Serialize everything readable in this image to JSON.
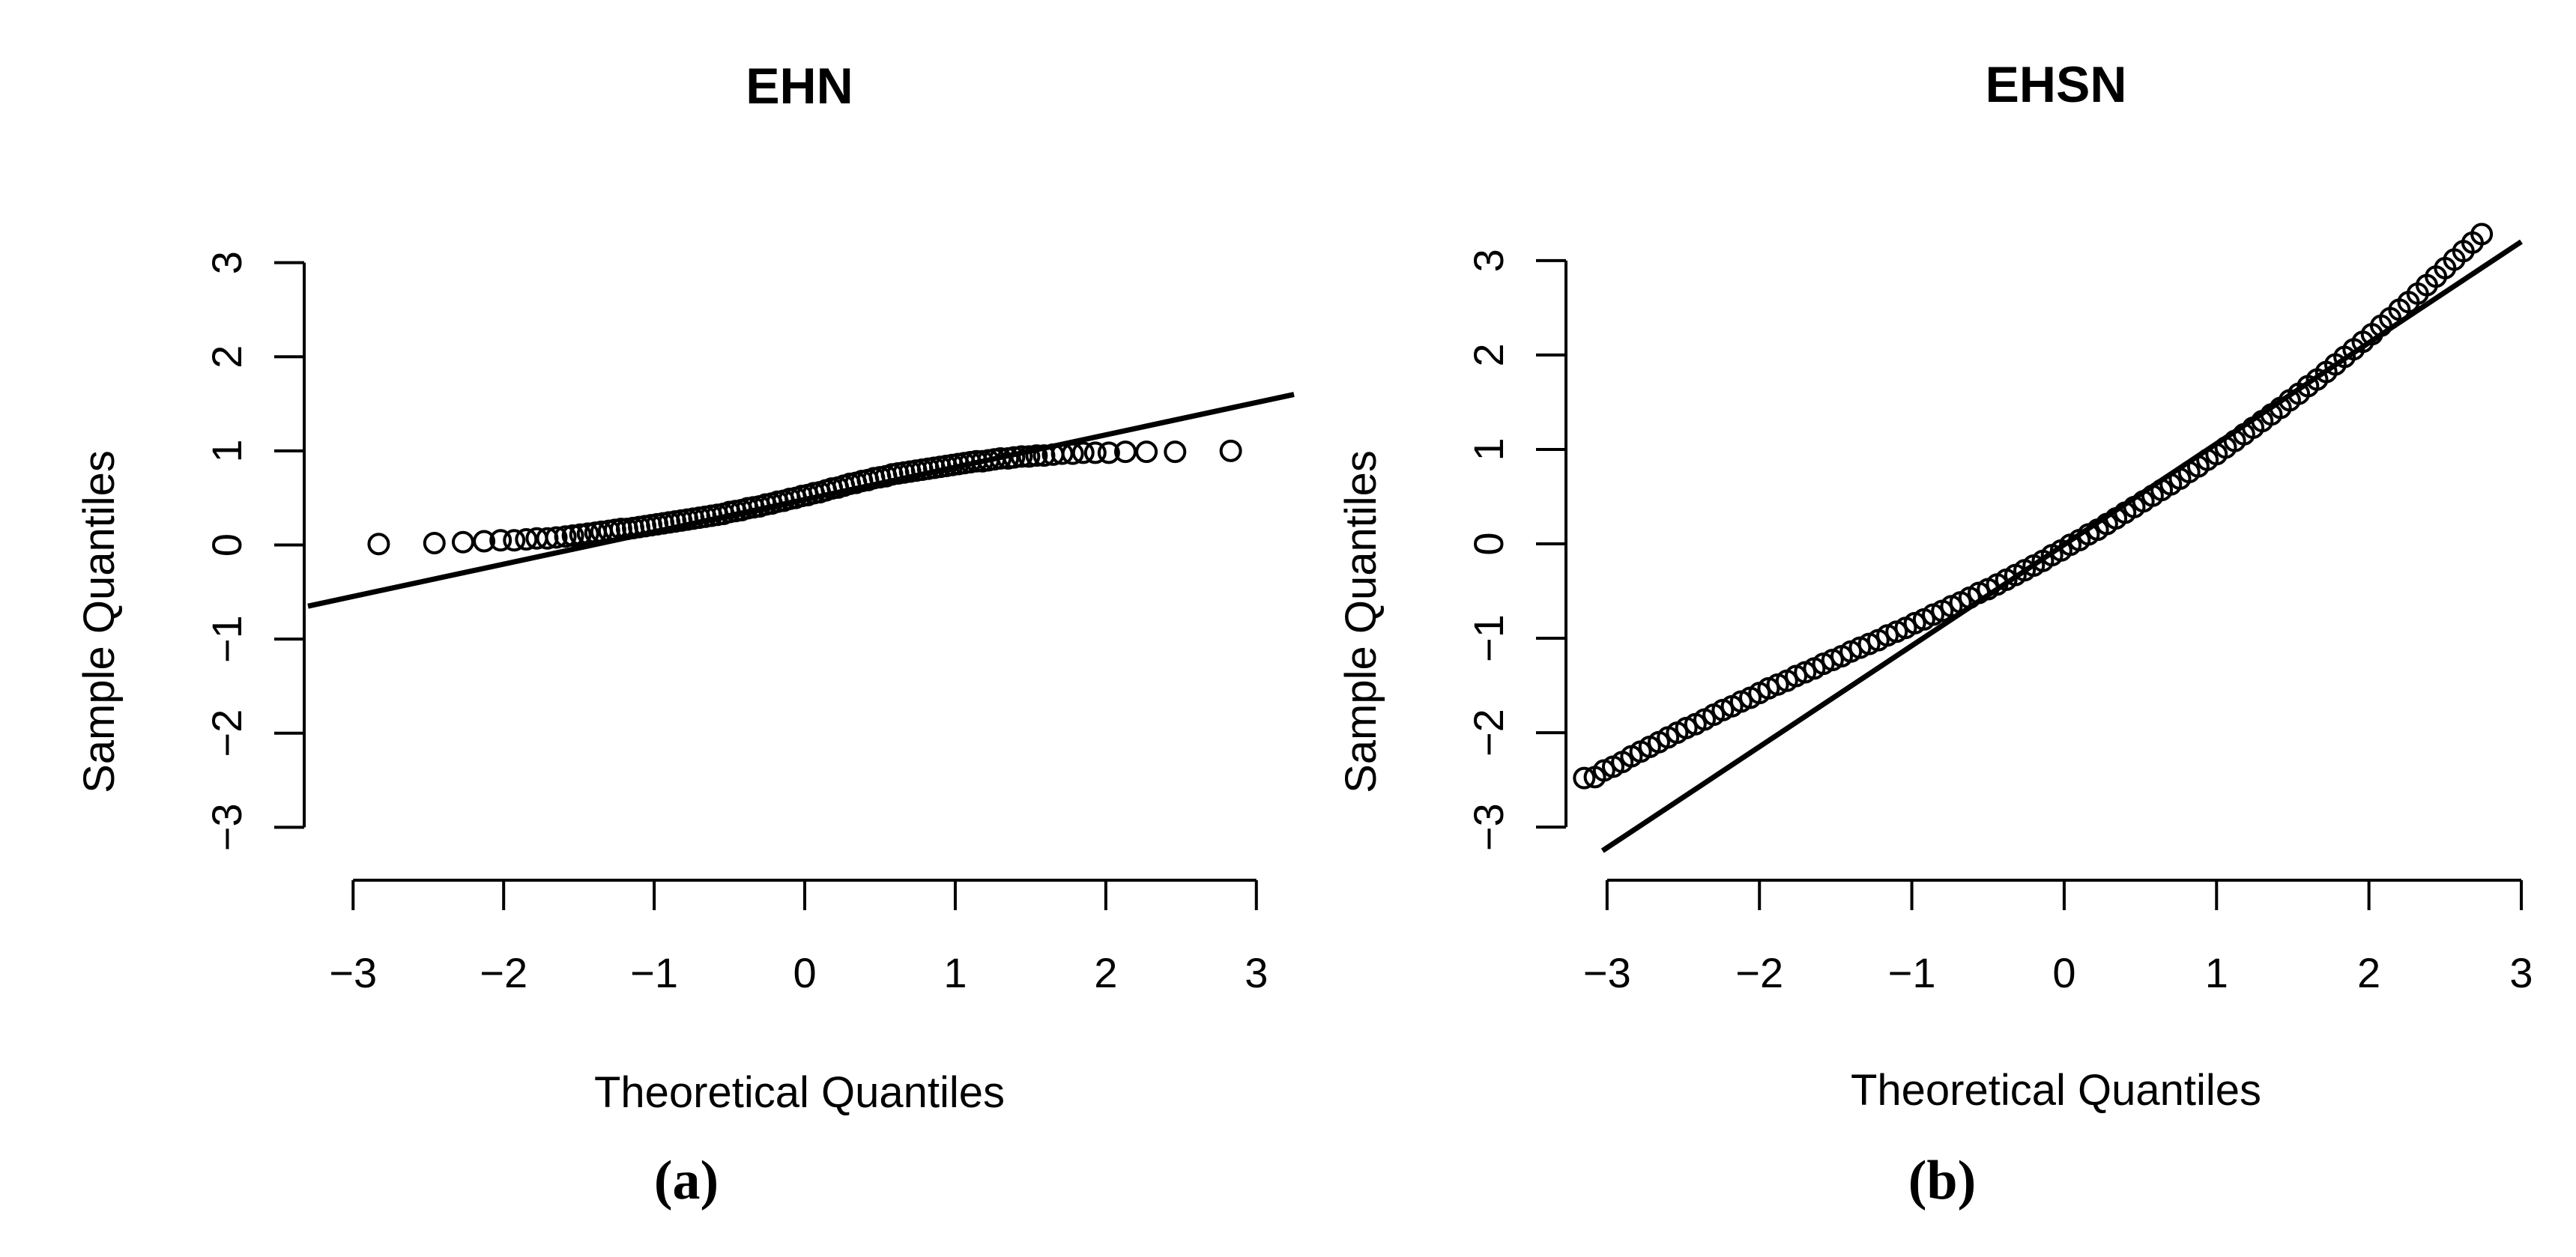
{
  "chart_data": [
    {
      "type": "scatter",
      "title": "EHN",
      "xlabel": "Theoretical Quantiles",
      "ylabel": "Sample Quantiles",
      "caption": "(a)",
      "xlim": [
        -3.3,
        3.25
      ],
      "ylim": [
        -3.3,
        3.3
      ],
      "xticks": [
        -3,
        -2,
        -1,
        0,
        1,
        2,
        3
      ],
      "yticks": [
        -3,
        -2,
        -1,
        0,
        1,
        2,
        3
      ],
      "xtick_labels": [
        "−3",
        "−2",
        "−1",
        "0",
        "1",
        "2",
        "3"
      ],
      "ytick_labels": [
        "−3",
        "−2",
        "−1",
        "0",
        "1",
        "2",
        "3"
      ],
      "grid": false,
      "reference_line": {
        "points": [
          [
            -3.3,
            -0.65
          ],
          [
            3.25,
            1.6
          ]
        ]
      },
      "points": {
        "x": [
          -2.83,
          -2.46,
          -2.27,
          -2.13,
          -2.02,
          -1.93,
          -1.85,
          -1.78,
          -1.71,
          -1.65,
          -1.59,
          -1.54,
          -1.49,
          -1.44,
          -1.39,
          -1.35,
          -1.3,
          -1.26,
          -1.22,
          -1.18,
          -1.14,
          -1.1,
          -1.06,
          -1.02,
          -0.98,
          -0.94,
          -0.9,
          -0.86,
          -0.82,
          -0.78,
          -0.74,
          -0.7,
          -0.66,
          -0.62,
          -0.58,
          -0.54,
          -0.5,
          -0.46,
          -0.42,
          -0.38,
          -0.34,
          -0.3,
          -0.26,
          -0.22,
          -0.18,
          -0.14,
          -0.1,
          -0.06,
          -0.02,
          0.02,
          0.06,
          0.1,
          0.14,
          0.18,
          0.22,
          0.26,
          0.3,
          0.34,
          0.38,
          0.42,
          0.46,
          0.5,
          0.54,
          0.58,
          0.62,
          0.66,
          0.7,
          0.74,
          0.78,
          0.82,
          0.86,
          0.9,
          0.94,
          0.98,
          1.02,
          1.06,
          1.1,
          1.14,
          1.18,
          1.22,
          1.26,
          1.3,
          1.35,
          1.39,
          1.44,
          1.49,
          1.54,
          1.59,
          1.65,
          1.71,
          1.78,
          1.85,
          1.93,
          2.02,
          2.13,
          2.27,
          2.46,
          2.83
        ],
        "y": [
          0.01,
          0.02,
          0.03,
          0.04,
          0.05,
          0.05,
          0.06,
          0.07,
          0.07,
          0.08,
          0.09,
          0.1,
          0.11,
          0.12,
          0.13,
          0.14,
          0.15,
          0.16,
          0.17,
          0.17,
          0.18,
          0.19,
          0.2,
          0.21,
          0.22,
          0.23,
          0.24,
          0.25,
          0.26,
          0.27,
          0.28,
          0.29,
          0.3,
          0.31,
          0.32,
          0.33,
          0.35,
          0.36,
          0.37,
          0.39,
          0.4,
          0.41,
          0.43,
          0.44,
          0.46,
          0.47,
          0.49,
          0.5,
          0.52,
          0.53,
          0.55,
          0.56,
          0.58,
          0.6,
          0.61,
          0.63,
          0.65,
          0.66,
          0.68,
          0.69,
          0.71,
          0.72,
          0.73,
          0.75,
          0.76,
          0.77,
          0.78,
          0.79,
          0.8,
          0.81,
          0.82,
          0.83,
          0.84,
          0.85,
          0.86,
          0.87,
          0.88,
          0.89,
          0.89,
          0.9,
          0.91,
          0.92,
          0.92,
          0.93,
          0.94,
          0.94,
          0.95,
          0.95,
          0.96,
          0.97,
          0.97,
          0.98,
          0.98,
          0.98,
          0.99,
          0.99,
          0.99,
          1.0
        ]
      }
    },
    {
      "type": "scatter",
      "title": "EHSN",
      "xlabel": "Theoretical Quantiles",
      "ylabel": "Sample Quantiles",
      "caption": "(b)",
      "xlim": [
        -3.25,
        3.0
      ],
      "ylim": [
        -3.3,
        3.3
      ],
      "xticks": [
        -3,
        -2,
        -1,
        0,
        1,
        2,
        3
      ],
      "yticks": [
        -3,
        -2,
        -1,
        0,
        1,
        2,
        3
      ],
      "xtick_labels": [
        "−3",
        "−2",
        "−1",
        "0",
        "1",
        "2",
        "3"
      ],
      "ytick_labels": [
        "−3",
        "−2",
        "−1",
        "0",
        "1",
        "2",
        "3"
      ],
      "grid": false,
      "reference_line": {
        "points": [
          [
            -3.03,
            -3.25
          ],
          [
            3.0,
            3.2
          ]
        ]
      },
      "points": {
        "x": [
          -3.15,
          -3.08,
          -3.02,
          -2.96,
          -2.9,
          -2.84,
          -2.78,
          -2.72,
          -2.66,
          -2.6,
          -2.54,
          -2.48,
          -2.42,
          -2.36,
          -2.3,
          -2.24,
          -2.18,
          -2.12,
          -2.06,
          -2.0,
          -1.94,
          -1.88,
          -1.82,
          -1.76,
          -1.7,
          -1.64,
          -1.58,
          -1.52,
          -1.46,
          -1.4,
          -1.34,
          -1.28,
          -1.22,
          -1.16,
          -1.1,
          -1.04,
          -0.98,
          -0.92,
          -0.86,
          -0.8,
          -0.74,
          -0.68,
          -0.62,
          -0.56,
          -0.5,
          -0.44,
          -0.38,
          -0.32,
          -0.26,
          -0.2,
          -0.14,
          -0.08,
          -0.02,
          0.04,
          0.1,
          0.16,
          0.22,
          0.28,
          0.34,
          0.4,
          0.46,
          0.52,
          0.58,
          0.64,
          0.7,
          0.76,
          0.82,
          0.88,
          0.94,
          1.0,
          1.06,
          1.12,
          1.18,
          1.24,
          1.3,
          1.36,
          1.42,
          1.48,
          1.54,
          1.6,
          1.66,
          1.72,
          1.78,
          1.84,
          1.9,
          1.96,
          2.02,
          2.08,
          2.14,
          2.2,
          2.26,
          2.32,
          2.38,
          2.44,
          2.5,
          2.56,
          2.62,
          2.68,
          2.74
        ],
        "y": [
          -2.48,
          -2.47,
          -2.4,
          -2.36,
          -2.31,
          -2.25,
          -2.2,
          -2.15,
          -2.1,
          -2.05,
          -2.0,
          -1.95,
          -1.91,
          -1.86,
          -1.81,
          -1.76,
          -1.72,
          -1.67,
          -1.63,
          -1.58,
          -1.53,
          -1.49,
          -1.45,
          -1.4,
          -1.36,
          -1.32,
          -1.27,
          -1.23,
          -1.19,
          -1.14,
          -1.1,
          -1.06,
          -1.02,
          -0.97,
          -0.93,
          -0.89,
          -0.84,
          -0.8,
          -0.75,
          -0.71,
          -0.66,
          -0.62,
          -0.57,
          -0.52,
          -0.48,
          -0.43,
          -0.38,
          -0.33,
          -0.28,
          -0.23,
          -0.18,
          -0.12,
          -0.07,
          -0.01,
          0.04,
          0.1,
          0.15,
          0.21,
          0.27,
          0.33,
          0.39,
          0.45,
          0.51,
          0.57,
          0.63,
          0.69,
          0.76,
          0.82,
          0.89,
          0.95,
          1.02,
          1.09,
          1.16,
          1.23,
          1.3,
          1.37,
          1.44,
          1.52,
          1.59,
          1.67,
          1.74,
          1.82,
          1.9,
          1.98,
          2.06,
          2.14,
          2.22,
          2.31,
          2.39,
          2.48,
          2.56,
          2.65,
          2.74,
          2.83,
          2.92,
          3.01,
          3.1,
          3.19,
          3.28
        ]
      }
    }
  ]
}
